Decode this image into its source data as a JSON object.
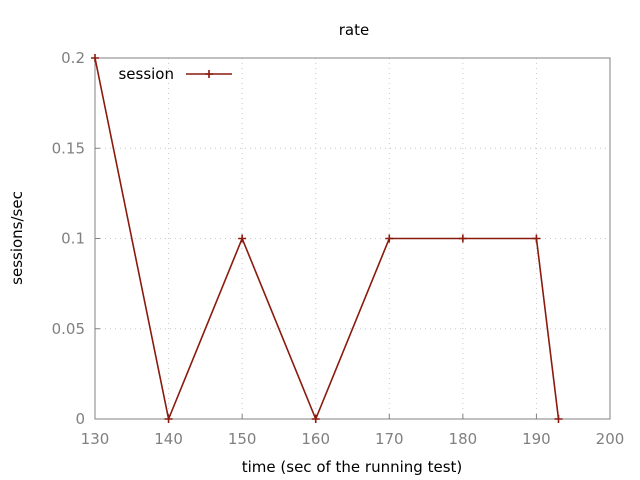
{
  "chart_data": {
    "type": "line",
    "title": "rate",
    "xlabel": "time (sec of the running test)",
    "ylabel": "sessions/sec",
    "xlim": [
      130,
      200
    ],
    "ylim": [
      0,
      0.2
    ],
    "xticks": [
      "130",
      "140",
      "150",
      "160",
      "170",
      "180",
      "190",
      "200"
    ],
    "yticks": [
      "0",
      "0.05",
      "0.1",
      "0.15",
      "0.2"
    ],
    "grid": true,
    "legend_position": "top-left",
    "series": [
      {
        "name": "session",
        "color": "#8b1a0e",
        "marker": "plus",
        "x": [
          130,
          140,
          150,
          160,
          170,
          180,
          190,
          193
        ],
        "y": [
          0.2,
          0,
          0.1,
          0,
          0.1,
          0.1,
          0.1,
          0
        ]
      }
    ]
  }
}
